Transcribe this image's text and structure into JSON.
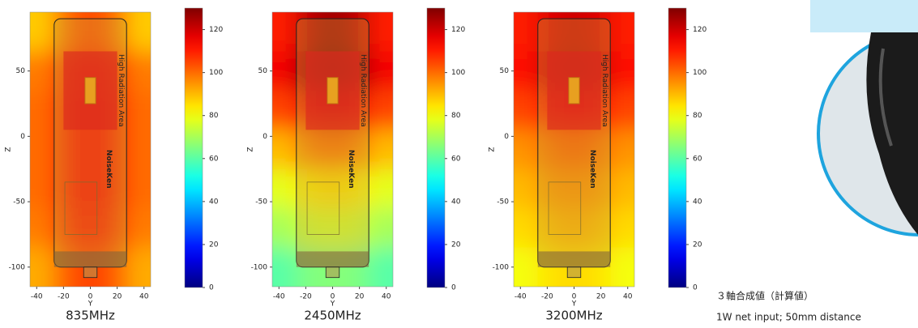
{
  "chart_data": [
    {
      "type": "heatmap",
      "caption": "835MHz",
      "xlabel": "Y",
      "ylabel": "Z",
      "x": [
        -36,
        -18,
        0,
        18,
        36
      ],
      "y": [
        80,
        50,
        20,
        -10,
        -40,
        -70,
        -100
      ],
      "values": [
        [
          88,
          100,
          105,
          100,
          88
        ],
        [
          98,
          108,
          112,
          108,
          98
        ],
        [
          100,
          110,
          113,
          110,
          100
        ],
        [
          100,
          110,
          113,
          110,
          100
        ],
        [
          100,
          110,
          113,
          110,
          100
        ],
        [
          98,
          108,
          112,
          108,
          98
        ],
        [
          92,
          102,
          106,
          102,
          92
        ]
      ],
      "xlim": [
        -45,
        45
      ],
      "ylim": [
        -115,
        95
      ],
      "xticks": [
        -40,
        -20,
        0,
        20,
        40
      ],
      "yticks": [
        -100,
        -50,
        0,
        50
      ],
      "clim": [
        0,
        130
      ],
      "cticks": [
        0,
        20,
        40,
        60,
        80,
        100,
        120
      ],
      "colormap": "jet",
      "device_label": "High Radiation Area",
      "brand": "NoiseKen"
    },
    {
      "type": "heatmap",
      "caption": "2450MHz",
      "xlabel": "Y",
      "ylabel": "Z",
      "x": [
        -36,
        -18,
        0,
        18,
        36
      ],
      "y": [
        80,
        50,
        20,
        -10,
        -40,
        -70,
        -100
      ],
      "values": [
        [
          110,
          122,
          126,
          122,
          110
        ],
        [
          115,
          126,
          130,
          126,
          115
        ],
        [
          105,
          115,
          118,
          115,
          105
        ],
        [
          90,
          98,
          100,
          98,
          90
        ],
        [
          78,
          84,
          86,
          84,
          78
        ],
        [
          70,
          75,
          76,
          75,
          70
        ],
        [
          60,
          65,
          66,
          65,
          60
        ]
      ],
      "xlim": [
        -45,
        45
      ],
      "ylim": [
        -115,
        95
      ],
      "xticks": [
        -40,
        -20,
        0,
        20,
        40
      ],
      "yticks": [
        -100,
        -50,
        0,
        50
      ],
      "clim": [
        0,
        130
      ],
      "cticks": [
        0,
        20,
        40,
        60,
        80,
        100,
        120
      ],
      "colormap": "jet",
      "device_label": "High Radiation Area",
      "brand": "NoiseKen"
    },
    {
      "type": "heatmap",
      "caption": "3200MHz",
      "xlabel": "Y",
      "ylabel": "Z",
      "x": [
        -36,
        -18,
        0,
        18,
        36
      ],
      "y": [
        80,
        50,
        20,
        -10,
        -40,
        -70,
        -100
      ],
      "values": [
        [
          110,
          118,
          120,
          118,
          110
        ],
        [
          112,
          120,
          122,
          120,
          112
        ],
        [
          105,
          112,
          114,
          112,
          105
        ],
        [
          95,
          100,
          102,
          100,
          95
        ],
        [
          90,
          95,
          96,
          95,
          90
        ],
        [
          86,
          90,
          92,
          90,
          86
        ],
        [
          80,
          85,
          86,
          85,
          80
        ]
      ],
      "xlim": [
        -45,
        45
      ],
      "ylim": [
        -115,
        95
      ],
      "xticks": [
        -40,
        -20,
        0,
        20,
        40
      ],
      "yticks": [
        -100,
        -50,
        0,
        50
      ],
      "clim": [
        0,
        130
      ],
      "cticks": [
        0,
        20,
        40,
        60,
        80,
        100,
        120
      ],
      "colormap": "jet",
      "device_label": "High Radiation Area",
      "brand": "NoiseKen"
    }
  ],
  "annotation": {
    "line1": "３軸合成値（計算値）",
    "line2": "1W net input; 50mm distance"
  }
}
